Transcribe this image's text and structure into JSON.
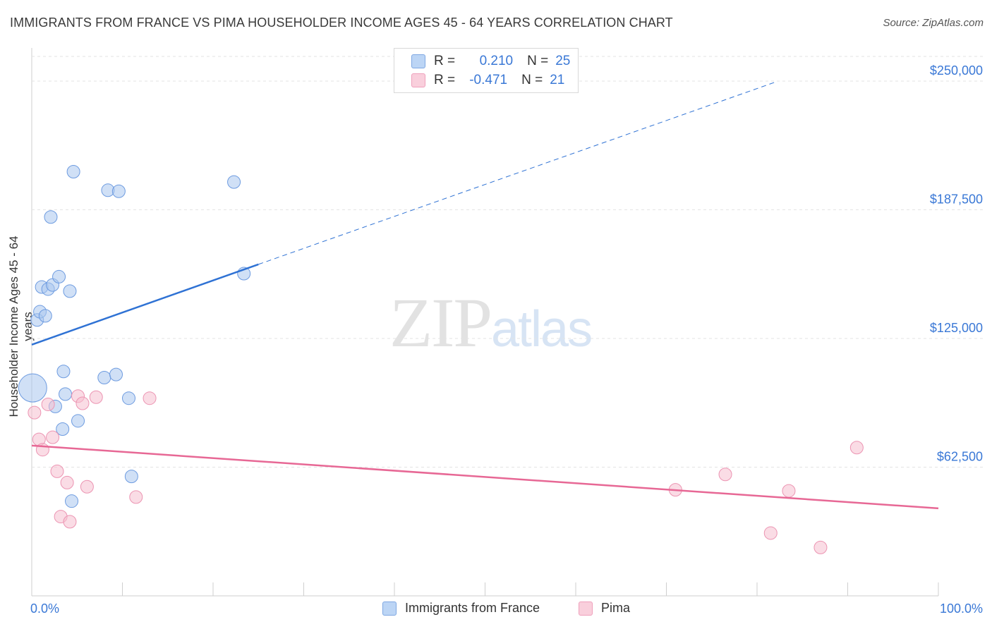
{
  "title": "IMMIGRANTS FROM FRANCE VS PIMA HOUSEHOLDER INCOME AGES 45 - 64 YEARS CORRELATION CHART",
  "source": "Source: ZipAtlas.com",
  "watermark": {
    "zip": "ZIP",
    "atlas": "atlas"
  },
  "legend": {
    "rows": [
      {
        "r_label": "R =",
        "r_value": "0.210",
        "n_label": "N =",
        "n_value": "25"
      },
      {
        "r_label": "R =",
        "r_value": "-0.471",
        "n_label": "N =",
        "n_value": "21"
      }
    ]
  },
  "bottom_legend": {
    "series1": "Immigrants from France",
    "series2": "Pima"
  },
  "chart_data": {
    "type": "scatter",
    "title": "IMMIGRANTS FROM FRANCE VS PIMA HOUSEHOLDER INCOME AGES 45 - 64 YEARS CORRELATION CHART",
    "xlabel": "",
    "ylabel": "Householder Income Ages 45 - 64 years",
    "xlim": [
      0,
      100
    ],
    "ylim": [
      0,
      262000
    ],
    "x_tick_labels": [
      "0.0%",
      "100.0%"
    ],
    "y_ticks": [
      62500,
      125000,
      187500,
      250000
    ],
    "y_tick_labels": [
      "$62,500",
      "$125,000",
      "$187,500",
      "$250,000"
    ],
    "grid": true,
    "legend_position": "top-center",
    "series": [
      {
        "name": "Immigrants from France",
        "color": "#a9c7ef",
        "stroke": "#6d9be0",
        "line_color": "#2f72d4",
        "trend": {
          "x0": 0,
          "y0": 122000,
          "x1": 25,
          "y1": 161000,
          "extend_to_x": 82,
          "extend_to_y": 249500
        },
        "points": [
          {
            "x": 0.1,
            "y": 101000,
            "big": true
          },
          {
            "x": 0.6,
            "y": 134000
          },
          {
            "x": 0.9,
            "y": 138000
          },
          {
            "x": 1.1,
            "y": 150000
          },
          {
            "x": 1.5,
            "y": 136000
          },
          {
            "x": 1.8,
            "y": 149000
          },
          {
            "x": 2.1,
            "y": 184000
          },
          {
            "x": 2.3,
            "y": 151000
          },
          {
            "x": 3.0,
            "y": 155000
          },
          {
            "x": 4.2,
            "y": 148000
          },
          {
            "x": 4.6,
            "y": 206000
          },
          {
            "x": 8.4,
            "y": 197000
          },
          {
            "x": 9.6,
            "y": 196500
          },
          {
            "x": 22.3,
            "y": 201000
          },
          {
            "x": 23.4,
            "y": 156500
          },
          {
            "x": 2.6,
            "y": 92000
          },
          {
            "x": 3.4,
            "y": 81000
          },
          {
            "x": 3.5,
            "y": 109000
          },
          {
            "x": 3.7,
            "y": 98000
          },
          {
            "x": 5.1,
            "y": 85000
          },
          {
            "x": 8.0,
            "y": 106000
          },
          {
            "x": 9.3,
            "y": 107500
          },
          {
            "x": 10.7,
            "y": 96000
          },
          {
            "x": 11.0,
            "y": 58000
          },
          {
            "x": 4.4,
            "y": 46000
          }
        ]
      },
      {
        "name": "Pima",
        "color": "#f6bfd0",
        "stroke": "#ec94b2",
        "line_color": "#e76895",
        "trend": {
          "x0": 0,
          "y0": 73000,
          "x1": 100,
          "y1": 42500
        },
        "points": [
          {
            "x": 0.3,
            "y": 89000
          },
          {
            "x": 0.8,
            "y": 76000
          },
          {
            "x": 1.2,
            "y": 71000
          },
          {
            "x": 1.8,
            "y": 93000
          },
          {
            "x": 2.3,
            "y": 77000
          },
          {
            "x": 2.8,
            "y": 60500
          },
          {
            "x": 3.2,
            "y": 38500
          },
          {
            "x": 3.9,
            "y": 55000
          },
          {
            "x": 4.2,
            "y": 36000
          },
          {
            "x": 5.1,
            "y": 97000
          },
          {
            "x": 5.6,
            "y": 93500
          },
          {
            "x": 6.1,
            "y": 53000
          },
          {
            "x": 7.1,
            "y": 96500
          },
          {
            "x": 11.5,
            "y": 48000
          },
          {
            "x": 13.0,
            "y": 96000
          },
          {
            "x": 71.0,
            "y": 51500
          },
          {
            "x": 76.5,
            "y": 59000
          },
          {
            "x": 81.5,
            "y": 30500
          },
          {
            "x": 83.5,
            "y": 51000
          },
          {
            "x": 87.0,
            "y": 23500
          },
          {
            "x": 91.0,
            "y": 72000
          }
        ]
      }
    ]
  }
}
